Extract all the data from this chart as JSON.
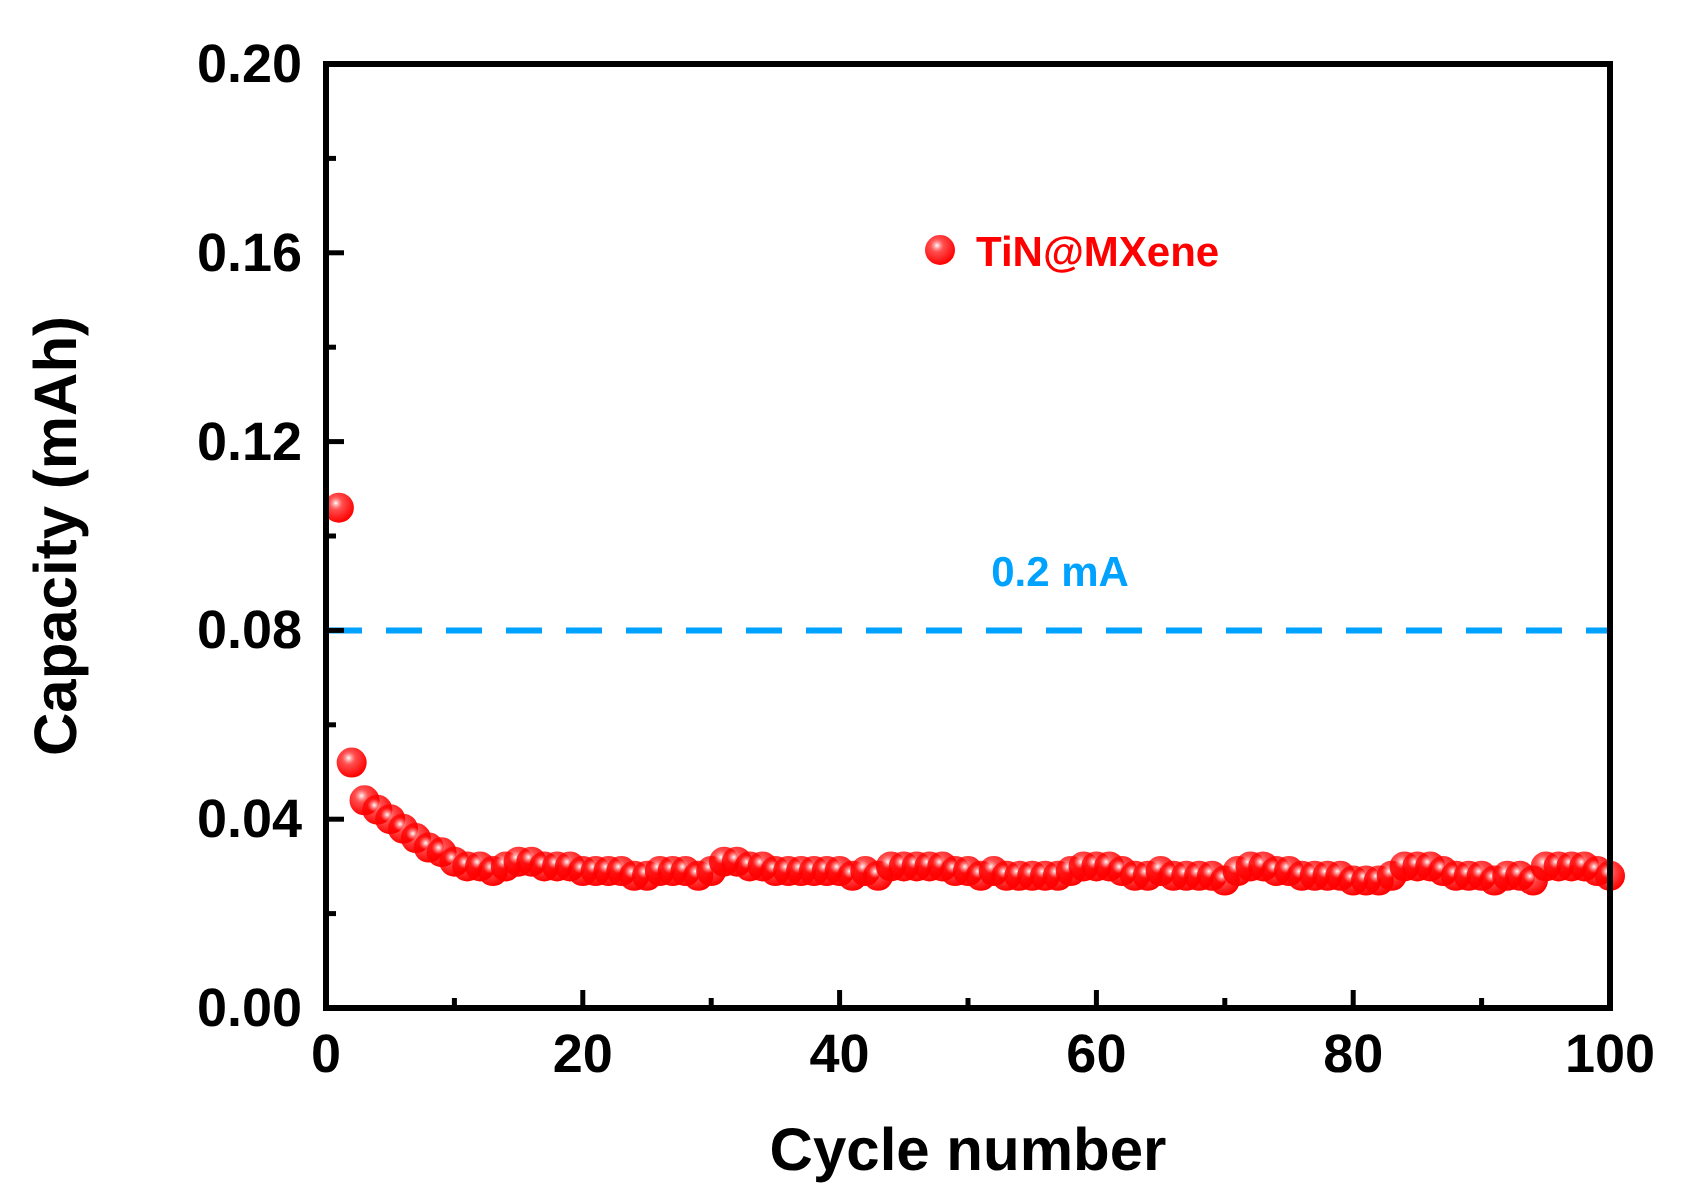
{
  "chart_data": {
    "type": "scatter",
    "xlabel": "Cycle number",
    "ylabel": "Capacity (mAh)",
    "xlim": [
      0,
      100
    ],
    "ylim": [
      0,
      0.2
    ],
    "xticks": [
      0,
      {
        "value": 10,
        "label": null
      },
      20,
      {
        "value": 30,
        "label": null
      },
      40,
      {
        "value": 50,
        "label": null
      },
      60,
      {
        "value": 70,
        "label": null
      },
      80,
      {
        "value": 90,
        "label": null
      },
      100
    ],
    "yticks": [
      "0.00",
      {
        "value": 0.02,
        "label": null
      },
      {
        "value": 0.04,
        "label": "0.04"
      },
      {
        "value": 0.06,
        "label": null
      },
      {
        "value": 0.08,
        "label": "0.08"
      },
      {
        "value": 0.1,
        "label": null
      },
      {
        "value": 0.12,
        "label": "0.12"
      },
      {
        "value": 0.14,
        "label": null
      },
      {
        "value": 0.16,
        "label": "0.16"
      },
      {
        "value": 0.18,
        "label": null
      },
      {
        "value": 0.2,
        "label": "0.20"
      }
    ],
    "marker": "circle",
    "legend": "top right",
    "grid": false,
    "ref_lines": [
      {
        "axis": "y",
        "value": 0.08,
        "label": "0.2 mA",
        "color": "#00a2ff",
        "line_style": "dashed"
      }
    ],
    "x": [
      1,
      2,
      3,
      4,
      5,
      6,
      7,
      8,
      9,
      10,
      11,
      12,
      13,
      14,
      15,
      16,
      17,
      18,
      19,
      20,
      21,
      22,
      23,
      24,
      25,
      26,
      27,
      28,
      29,
      30,
      31,
      32,
      33,
      34,
      35,
      36,
      37,
      38,
      39,
      40,
      41,
      42,
      43,
      44,
      45,
      46,
      47,
      48,
      49,
      50,
      51,
      52,
      53,
      54,
      55,
      56,
      57,
      58,
      59,
      60,
      61,
      62,
      63,
      64,
      65,
      66,
      67,
      68,
      69,
      70,
      71,
      72,
      73,
      74,
      75,
      76,
      77,
      78,
      79,
      80,
      81,
      82,
      83,
      84,
      85,
      86,
      87,
      88,
      89,
      90,
      91,
      92,
      93,
      94,
      95,
      96,
      97,
      98,
      99,
      100
    ],
    "series": [
      {
        "name": "TiN@MXene",
        "color": "#ff0000",
        "values": [
          0.106,
          0.052,
          0.044,
          0.042,
          0.04,
          0.038,
          0.036,
          0.034,
          0.033,
          0.031,
          0.03,
          0.03,
          0.029,
          0.03,
          0.031,
          0.031,
          0.03,
          0.03,
          0.03,
          0.029,
          0.029,
          0.029,
          0.029,
          0.028,
          0.028,
          0.029,
          0.029,
          0.029,
          0.028,
          0.029,
          0.031,
          0.031,
          0.03,
          0.03,
          0.029,
          0.029,
          0.029,
          0.029,
          0.029,
          0.029,
          0.028,
          0.029,
          0.028,
          0.03,
          0.03,
          0.03,
          0.03,
          0.03,
          0.029,
          0.029,
          0.028,
          0.029,
          0.028,
          0.028,
          0.028,
          0.028,
          0.028,
          0.029,
          0.03,
          0.03,
          0.03,
          0.029,
          0.028,
          0.028,
          0.029,
          0.028,
          0.028,
          0.028,
          0.028,
          0.027,
          0.029,
          0.03,
          0.03,
          0.029,
          0.029,
          0.028,
          0.028,
          0.028,
          0.028,
          0.027,
          0.027,
          0.027,
          0.028,
          0.03,
          0.03,
          0.03,
          0.029,
          0.028,
          0.028,
          0.028,
          0.027,
          0.028,
          0.028,
          0.027,
          0.03,
          0.03,
          0.03,
          0.03,
          0.029,
          0.028
        ]
      }
    ]
  }
}
